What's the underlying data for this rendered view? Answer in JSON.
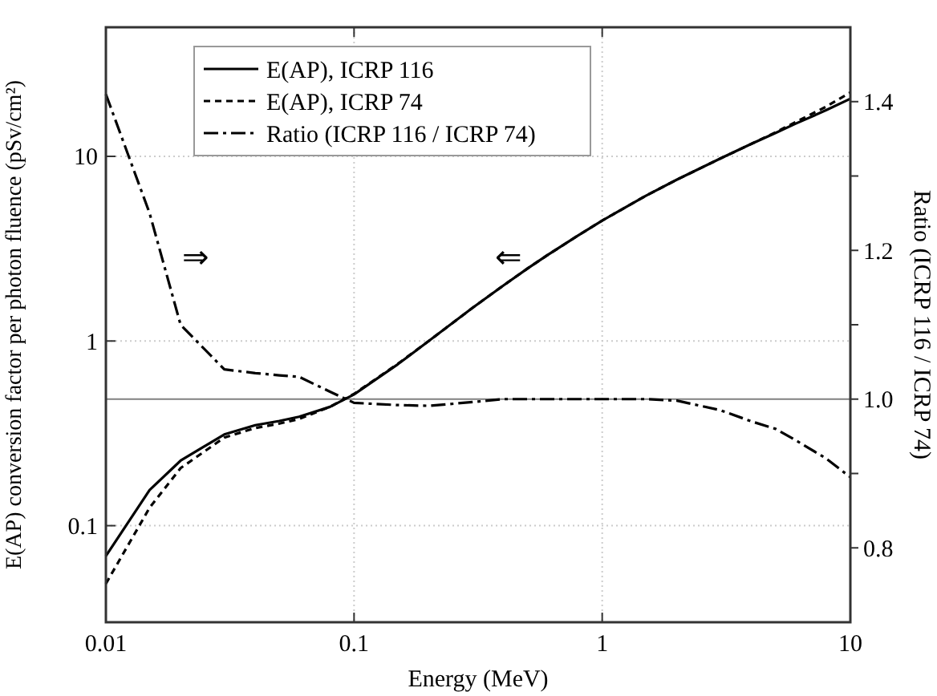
{
  "chart_data": {
    "type": "line",
    "xlabel": "Energy (MeV)",
    "ylabel": "E(AP) conversion factor per photon fluence (pSv/cm²)",
    "y2label": "Ratio (ICRP 116 / ICRP 74)",
    "log": "xy",
    "grid": true,
    "legend": "top left",
    "marker": "none",
    "x": [
      0.01,
      0.015,
      0.02,
      0.03,
      0.04,
      0.05,
      0.06,
      0.08,
      0.1,
      0.15,
      0.2,
      0.3,
      0.4,
      0.5,
      0.6,
      0.8,
      1,
      1.5,
      2,
      3,
      4,
      5,
      6,
      8,
      10
    ],
    "xlim": [
      0.01,
      10
    ],
    "xticks": [
      0.01,
      0.1,
      1,
      10
    ],
    "ylim": [
      0.03,
      50
    ],
    "yticks": [
      0.1,
      1,
      10
    ],
    "y2lim": [
      0.7,
      1.5
    ],
    "y2ticks": [
      0.8,
      {
        "value": 0.9,
        "label": null
      },
      {
        "value": 1.0,
        "label": "1.0"
      },
      {
        "value": 1.1,
        "label": null
      },
      1.2,
      {
        "value": 1.3,
        "label": null
      },
      1.4
    ],
    "series": [
      {
        "name": "E(AP), ICRP 116",
        "color": "#000000",
        "line_style": "solid",
        "values": [
          0.0685,
          0.156,
          0.225,
          0.312,
          0.35,
          0.369,
          0.389,
          0.44,
          0.514,
          0.748,
          1.0,
          1.51,
          2.0,
          2.47,
          2.91,
          3.73,
          4.49,
          6.12,
          7.48,
          9.75,
          11.7,
          13.4,
          15.0,
          17.8,
          20.5
        ]
      },
      {
        "name": "E(AP), ICRP 74",
        "color": "#000000",
        "line_style": "dashed",
        "values": [
          0.0485,
          0.125,
          0.205,
          0.3,
          0.338,
          0.357,
          0.378,
          0.44,
          0.517,
          0.752,
          1.0,
          1.51,
          2.0,
          2.47,
          2.91,
          3.73,
          4.49,
          6.12,
          7.48,
          9.75,
          11.7,
          13.5,
          15.3,
          18.6,
          22.2
        ]
      },
      {
        "name": "Ratio (ICRP 116 / ICRP 74)",
        "color": "#000000",
        "line_style": "dashdot",
        "axis": "y2",
        "values": [
          1.41,
          1.25,
          1.1,
          1.04,
          1.035,
          1.032,
          1.03,
          1.01,
          0.995,
          0.992,
          0.991,
          0.996,
          1.0,
          1.0,
          1.0,
          1.0,
          1.0,
          1.0,
          0.998,
          0.985,
          0.97,
          0.96,
          0.945,
          0.92,
          0.895
        ]
      }
    ],
    "ref_lines": [
      {
        "axis": "y2",
        "value": 1.0,
        "color": "#808080",
        "line_style": "solid"
      }
    ],
    "annotations": [
      "⇒",
      "⇐"
    ]
  }
}
